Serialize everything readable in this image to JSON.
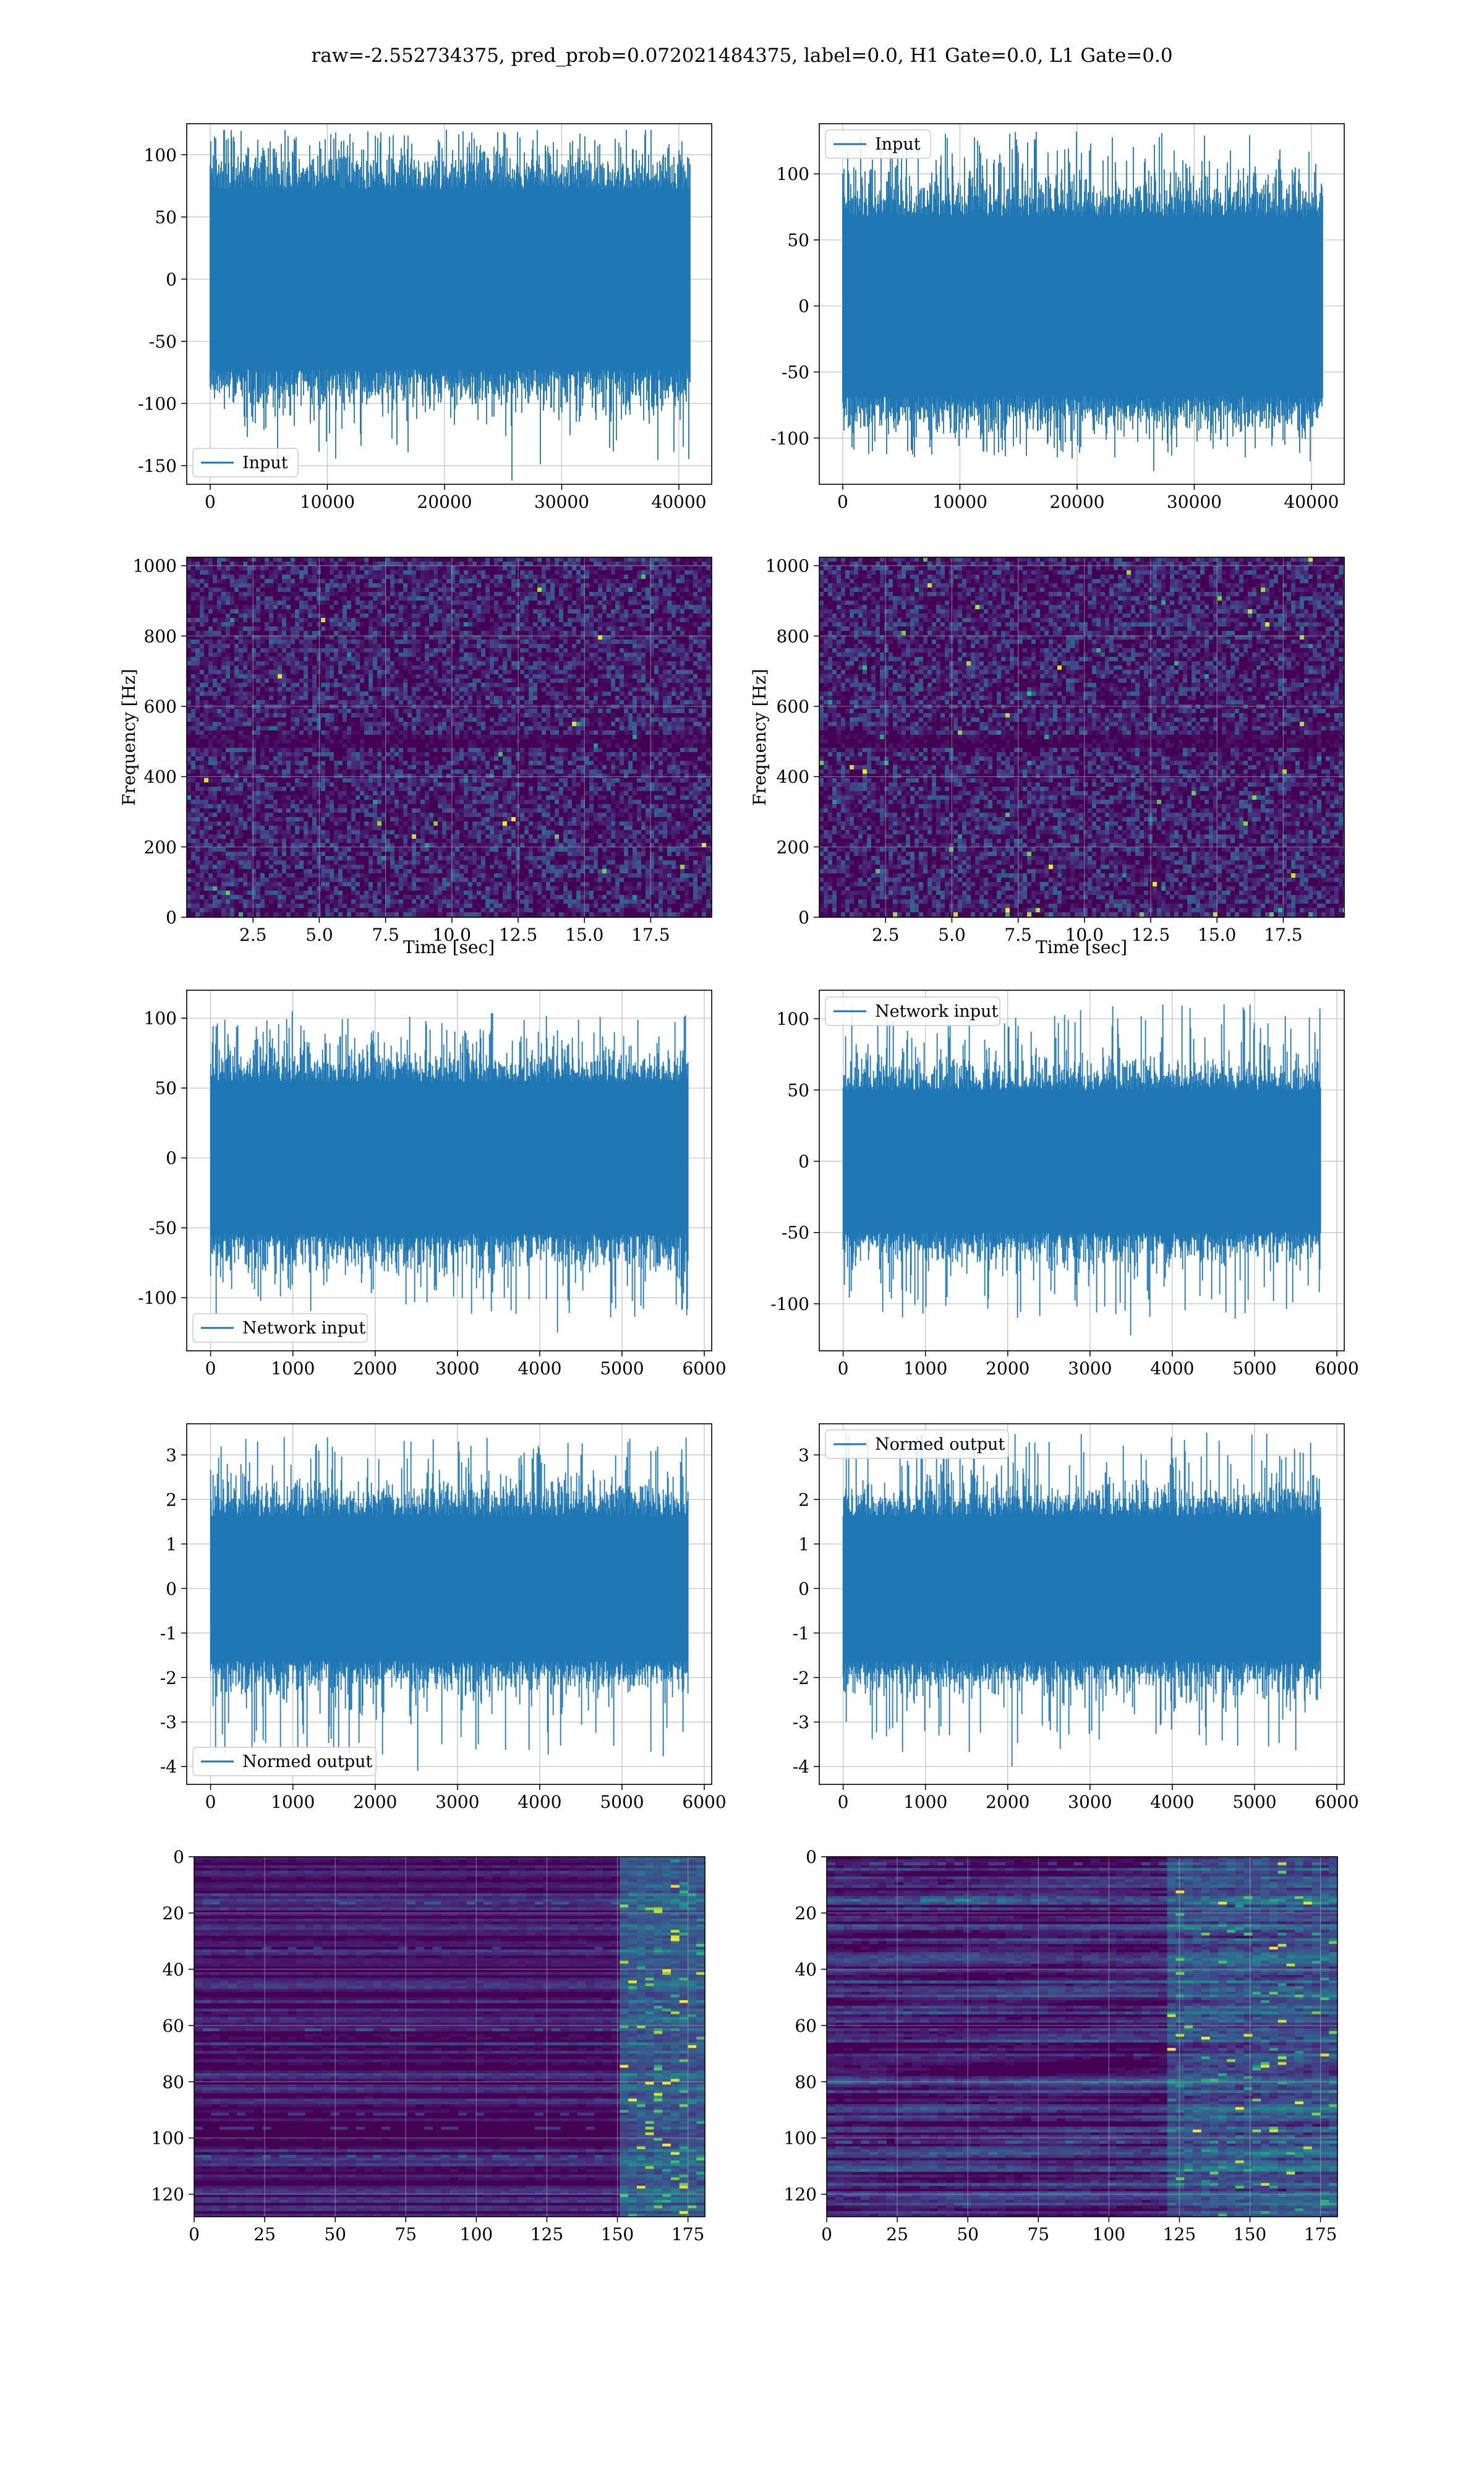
{
  "suptitle": "raw=-2.552734375, pred_prob=0.072021484375, label=0.0, H1 Gate=0.0, L1 Gate=0.0",
  "colors": {
    "line": "#1f77b4",
    "viridis_dark": "#440154",
    "grid": "#b0b0b0",
    "frame": "#000000"
  },
  "chart_data": [
    {
      "id": "ts-input-h1",
      "type": "line",
      "row": 0,
      "col": 0,
      "xlim": [
        -2000,
        42800
      ],
      "ylim": [
        -165,
        125
      ],
      "xticks": [
        0,
        10000,
        20000,
        30000,
        40000
      ],
      "yticks": [
        -150,
        -100,
        -50,
        0,
        50,
        100
      ],
      "legend": "lower-left",
      "series": [
        {
          "name": "Input",
          "n_samples": 40960,
          "x_range": [
            0,
            40960
          ],
          "band": [
            -80,
            80
          ],
          "peaks_max": 120,
          "peaks_min": -162
        }
      ]
    },
    {
      "id": "ts-input-l1",
      "type": "line",
      "row": 0,
      "col": 1,
      "xlim": [
        -2000,
        42800
      ],
      "ylim": [
        -135,
        138
      ],
      "xticks": [
        0,
        10000,
        20000,
        30000,
        40000
      ],
      "yticks": [
        -100,
        -50,
        0,
        50,
        100
      ],
      "legend": "upper-left",
      "series": [
        {
          "name": "Input",
          "n_samples": 40960,
          "x_range": [
            0,
            40960
          ],
          "band": [
            -75,
            75
          ],
          "peaks_max": 132,
          "peaks_min": -125
        }
      ]
    },
    {
      "id": "spec-h1",
      "type": "heatmap",
      "row": 1,
      "col": 0,
      "xlim": [
        0,
        19.8
      ],
      "ylim": [
        0,
        1024
      ],
      "xticks": [
        2.5,
        5.0,
        7.5,
        10.0,
        12.5,
        15.0,
        17.5
      ],
      "yticks": [
        0,
        200,
        400,
        600,
        800,
        1000
      ],
      "xlabel": "Time [sec]",
      "ylabel": "Frequency [Hz]",
      "colormap": "viridis",
      "dark_band_hz": [
        490,
        510
      ]
    },
    {
      "id": "spec-l1",
      "type": "heatmap",
      "row": 1,
      "col": 1,
      "xlim": [
        0,
        19.8
      ],
      "ylim": [
        0,
        1024
      ],
      "xticks": [
        2.5,
        5.0,
        7.5,
        10.0,
        12.5,
        15.0,
        17.5
      ],
      "yticks": [
        0,
        200,
        400,
        600,
        800,
        1000
      ],
      "xlabel": "Time [sec]",
      "ylabel": "Frequency [Hz]",
      "colormap": "viridis",
      "dark_band_hz": [
        490,
        510
      ]
    },
    {
      "id": "ts-net-h1",
      "type": "line",
      "row": 2,
      "col": 0,
      "xlim": [
        -290,
        6090
      ],
      "ylim": [
        -138,
        120
      ],
      "xticks": [
        0,
        1000,
        2000,
        3000,
        4000,
        5000,
        6000
      ],
      "yticks": [
        -100,
        -50,
        0,
        50,
        100
      ],
      "legend": "lower-left",
      "series": [
        {
          "name": "Network input",
          "n_samples": 5800,
          "x_range": [
            0,
            5800
          ],
          "band": [
            -60,
            60
          ],
          "peaks_max": 105,
          "peaks_min": -125
        }
      ]
    },
    {
      "id": "ts-net-l1",
      "type": "line",
      "row": 2,
      "col": 1,
      "xlim": [
        -290,
        6090
      ],
      "ylim": [
        -133,
        120
      ],
      "xticks": [
        0,
        1000,
        2000,
        3000,
        4000,
        5000,
        6000
      ],
      "yticks": [
        -100,
        -50,
        0,
        50,
        100
      ],
      "legend": "upper-left",
      "series": [
        {
          "name": "Network input",
          "n_samples": 5800,
          "x_range": [
            0,
            5800
          ],
          "band": [
            -55,
            55
          ],
          "peaks_max": 110,
          "peaks_min": -122
        }
      ]
    },
    {
      "id": "ts-norm-h1",
      "type": "line",
      "row": 3,
      "col": 0,
      "xlim": [
        -290,
        6090
      ],
      "ylim": [
        -4.4,
        3.7
      ],
      "xticks": [
        0,
        1000,
        2000,
        3000,
        4000,
        5000,
        6000
      ],
      "yticks": [
        -4,
        -3,
        -2,
        -1,
        0,
        1,
        2,
        3
      ],
      "legend": "lower-left",
      "series": [
        {
          "name": "Normed output",
          "n_samples": 5800,
          "x_range": [
            0,
            5800
          ],
          "band": [
            -1.8,
            1.8
          ],
          "peaks_max": 3.4,
          "peaks_min": -4.1
        }
      ]
    },
    {
      "id": "ts-norm-l1",
      "type": "line",
      "row": 3,
      "col": 1,
      "xlim": [
        -290,
        6090
      ],
      "ylim": [
        -4.4,
        3.7
      ],
      "xticks": [
        0,
        1000,
        2000,
        3000,
        4000,
        5000,
        6000
      ],
      "yticks": [
        -4,
        -3,
        -2,
        -1,
        0,
        1,
        2,
        3
      ],
      "legend": "upper-left",
      "series": [
        {
          "name": "Normed output",
          "n_samples": 5800,
          "x_range": [
            0,
            5800
          ],
          "band": [
            -1.8,
            1.8
          ],
          "peaks_max": 3.5,
          "peaks_min": -4.0
        }
      ]
    },
    {
      "id": "feat-h1",
      "type": "heatmap",
      "row": 4,
      "col": 0,
      "xlim": [
        0,
        181
      ],
      "ylim": [
        128,
        0
      ],
      "xticks": [
        0,
        25,
        50,
        75,
        100,
        125,
        150,
        175
      ],
      "yticks": [
        0,
        20,
        40,
        60,
        80,
        100,
        120
      ],
      "colormap": "viridis",
      "hot_region_x": [
        150,
        181
      ]
    },
    {
      "id": "feat-l1",
      "type": "heatmap",
      "row": 4,
      "col": 1,
      "xlim": [
        0,
        181
      ],
      "ylim": [
        128,
        0
      ],
      "xticks": [
        0,
        25,
        50,
        75,
        100,
        125,
        150,
        175
      ],
      "yticks": [
        0,
        20,
        40,
        60,
        80,
        100,
        120
      ],
      "colormap": "viridis",
      "hot_region_x": [
        120,
        181
      ]
    }
  ]
}
